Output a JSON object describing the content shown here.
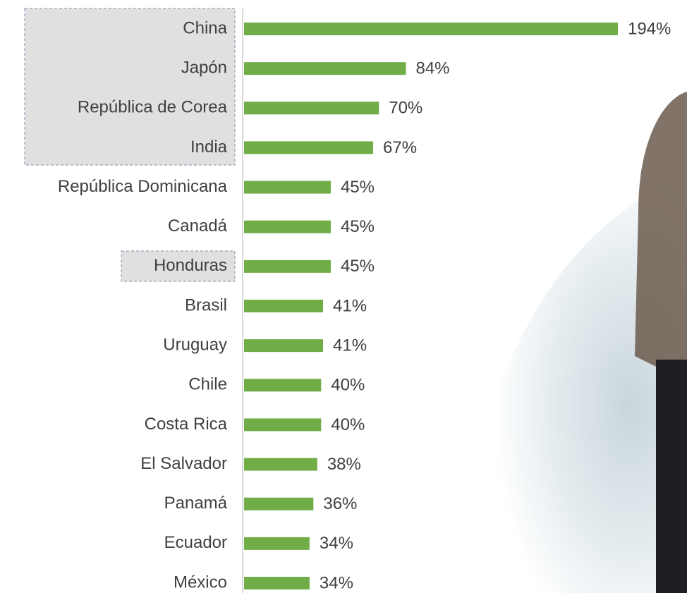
{
  "chart_data": {
    "type": "bar",
    "orientation": "horizontal",
    "categories": [
      "China",
      "Japón",
      "República de Corea",
      "India",
      "República Dominicana",
      "Canadá",
      "Honduras",
      "Brasil",
      "Uruguay",
      "Chile",
      "Costa Rica",
      "El Salvador",
      "Panamá",
      "Ecuador",
      "México"
    ],
    "values": [
      194,
      84,
      70,
      67,
      45,
      45,
      45,
      41,
      41,
      40,
      40,
      38,
      36,
      34,
      34
    ],
    "value_labels": [
      "194%",
      "84%",
      "70%",
      "67%",
      "45%",
      "45%",
      "45%",
      "41%",
      "41%",
      "40%",
      "40%",
      "38%",
      "36%",
      "34%",
      "34%"
    ],
    "color": "#70ad47"
  }
}
